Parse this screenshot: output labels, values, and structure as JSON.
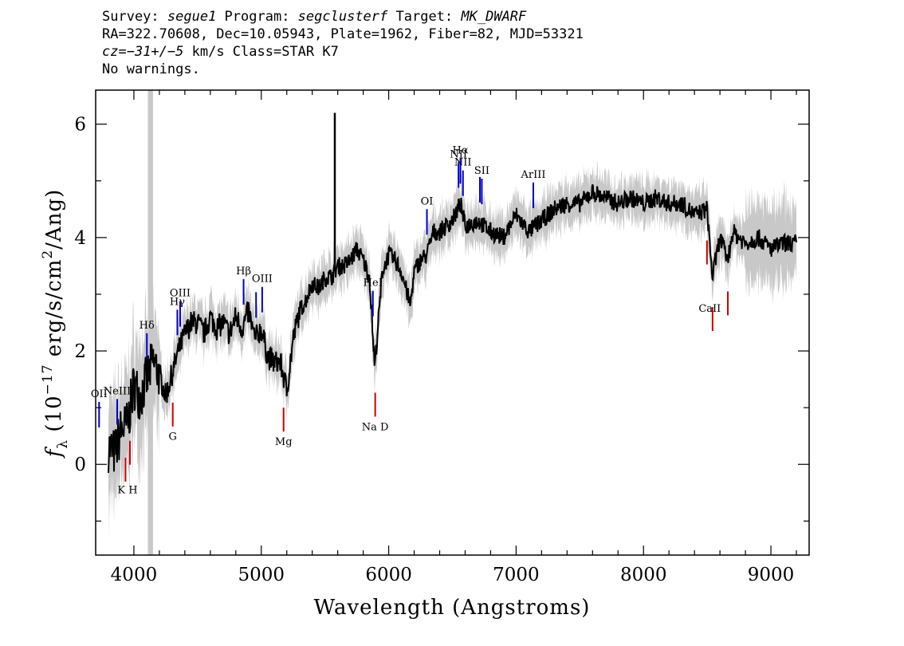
{
  "header": {
    "survey_label": "Survey: ",
    "survey": "segue1",
    "program_label": " Program: ",
    "program": "segclusterf",
    "target_label": " Target: ",
    "target": "MK_DWARF",
    "line2": "RA=322.70608, Dec=10.05943, Plate=1962, Fiber=82, MJD=53321",
    "cz_label": "cz=",
    "cz_value": "−31+/−5",
    "line3_rest": " km/s Class=STAR K7",
    "line4": "No warnings."
  },
  "chart_data": {
    "type": "line",
    "xlabel": "Wavelength (Angstroms)",
    "ylabel": "fλ (10⁻¹⁷ erg/s/cm²/Ang)",
    "xlim": [
      3700,
      9300
    ],
    "ylim": [
      -1.6,
      6.6
    ],
    "x_ticks": [
      4000,
      5000,
      6000,
      7000,
      8000,
      9000
    ],
    "y_ticks": [
      0,
      2,
      4,
      6
    ],
    "masked_region": [
      4110,
      4150
    ],
    "series": [
      {
        "role": "flux",
        "color": "#000000",
        "x": [
          3800,
          3850,
          3900,
          3950,
          4000,
          4050,
          4100,
          4150,
          4200,
          4250,
          4300,
          4350,
          4400,
          4450,
          4500,
          4550,
          4600,
          4650,
          4700,
          4750,
          4800,
          4850,
          4900,
          4950,
          5000,
          5050,
          5100,
          5150,
          5200,
          5250,
          5300,
          5350,
          5400,
          5450,
          5500,
          5550,
          5600,
          5650,
          5700,
          5750,
          5800,
          5850,
          5890,
          5950,
          6000,
          6050,
          6100,
          6170,
          6200,
          6250,
          6300,
          6350,
          6400,
          6450,
          6500,
          6563,
          6600,
          6700,
          6800,
          6900,
          7000,
          7100,
          7200,
          7300,
          7400,
          7500,
          7600,
          7700,
          7800,
          7900,
          8000,
          8100,
          8200,
          8300,
          8400,
          8500,
          8540,
          8600,
          8662,
          8700,
          8800,
          8900,
          9000,
          9100,
          9200
        ],
        "y": [
          0.3,
          0.2,
          0.6,
          0.7,
          1.4,
          1.2,
          1.5,
          1.8,
          1.6,
          1.2,
          1.6,
          2.0,
          2.3,
          2.5,
          2.5,
          2.3,
          2.6,
          2.4,
          2.5,
          2.3,
          2.6,
          2.4,
          2.7,
          2.2,
          2.4,
          1.9,
          1.8,
          1.8,
          1.3,
          2.2,
          2.7,
          2.9,
          3.2,
          3.1,
          3.3,
          3.3,
          3.5,
          3.5,
          3.6,
          3.8,
          3.6,
          3.3,
          1.7,
          3.4,
          3.7,
          3.6,
          3.4,
          2.8,
          3.4,
          3.6,
          3.7,
          4.1,
          4.1,
          4.2,
          4.3,
          4.6,
          4.2,
          4.3,
          4.1,
          4.0,
          4.4,
          4.1,
          4.3,
          4.5,
          4.6,
          4.6,
          4.8,
          4.7,
          4.6,
          4.7,
          4.6,
          4.7,
          4.6,
          4.6,
          4.4,
          4.5,
          3.3,
          4.0,
          3.6,
          4.1,
          3.9,
          4.0,
          3.8,
          3.9,
          3.9
        ]
      },
      {
        "role": "flux-error-envelope",
        "color": "#c8c8c8"
      }
    ],
    "sky_spike": {
      "x": 5577,
      "y": 6.2
    },
    "emission_lines": [
      {
        "label": "OII",
        "x": 3727
      },
      {
        "label": "NeIII",
        "x": 3869
      },
      {
        "label": "Hδ",
        "x": 4102
      },
      {
        "label": "Hγ",
        "x": 4341
      },
      {
        "label": "OIII",
        "x": 4363
      },
      {
        "label": "Hβ",
        "x": 4861
      },
      {
        "label": "OIII",
        "x": 4959
      },
      {
        "label": "OIII",
        "x": 5007
      },
      {
        "label": "HeI",
        "x": 5876
      },
      {
        "label": "OI",
        "x": 6300
      },
      {
        "label": "NII",
        "x": 6548
      },
      {
        "label": "Hα",
        "x": 6563
      },
      {
        "label": "NII",
        "x": 6583
      },
      {
        "label": "SII",
        "x": 6716
      },
      {
        "label": "SII",
        "x": 6731
      },
      {
        "label": "ArIII",
        "x": 7135
      }
    ],
    "absorption_lines": [
      {
        "label": "K",
        "x": 3934
      },
      {
        "label": "H",
        "x": 3969
      },
      {
        "label": "G",
        "x": 4305
      },
      {
        "label": "Mg",
        "x": 5175
      },
      {
        "label": "Na D",
        "x": 5894
      },
      {
        "label": "CaII",
        "x": 8498
      },
      {
        "label": "CaII",
        "x": 8542
      },
      {
        "label": "CaII",
        "x": 8662
      }
    ],
    "emission_labels": [
      {
        "text": "OII",
        "anchor": 3727
      },
      {
        "text": "NeIII",
        "anchor": 3869
      },
      {
        "text": "Hδ",
        "anchor": 4102
      },
      {
        "text": "Hγ",
        "anchor": 4341
      },
      {
        "text": "OIII",
        "anchor": 4363
      },
      {
        "text": "Hβ",
        "anchor": 4861
      },
      {
        "text": "OIII",
        "anchor": 5007
      },
      {
        "text": "HeI",
        "anchor": 5876
      },
      {
        "text": "OI",
        "anchor": 6300
      },
      {
        "text": "NII",
        "anchor": 6548
      },
      {
        "text": "Hα",
        "anchor": 6563
      },
      {
        "text": "NII",
        "anchor": 6583
      },
      {
        "text": "SII",
        "anchor": 6731
      },
      {
        "text": "ArIII",
        "anchor": 7135
      }
    ],
    "absorption_labels": [
      {
        "text": "K H",
        "anchor": 3950
      },
      {
        "text": "G",
        "anchor": 4305
      },
      {
        "text": "Mg",
        "anchor": 5175
      },
      {
        "text": "Na D",
        "anchor": 5894
      },
      {
        "text": "CaII",
        "anchor": 8520
      }
    ],
    "emission_color": "#0000cc",
    "absorption_color": "#cc0000",
    "mask_color": "#c8c8c8"
  }
}
